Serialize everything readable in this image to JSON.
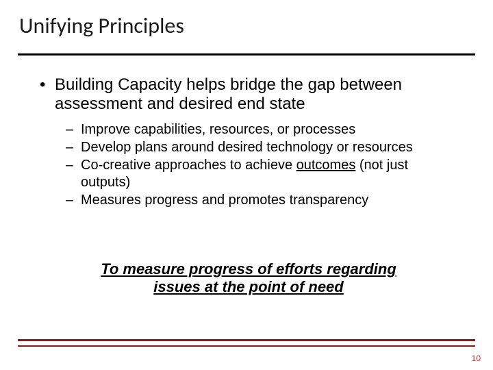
{
  "title": "Unifying Principles",
  "colors": {
    "title_rule": "#000000",
    "bottom_rule": "#8b1a1a",
    "page_num": "#9a3b3b",
    "text": "#000000",
    "background": "#ffffff"
  },
  "fonts": {
    "title_family": "Calibri",
    "body_family": "Arial",
    "title_size_pt": 32,
    "bullet_size_pt": 24,
    "sub_bullet_size_pt": 20,
    "summary_size_pt": 22
  },
  "bullet": {
    "marker": "•",
    "text": "Building Capacity helps bridge the gap between assessment and desired end state"
  },
  "sub_bullets": {
    "marker": "–",
    "items": [
      {
        "text": "Improve capabilities, resources, or processes"
      },
      {
        "text": "Develop plans around desired technology or resources"
      },
      {
        "pre": "Co-creative approaches to achieve ",
        "underlined": "outcomes",
        "post": " (not just outputs)"
      },
      {
        "text": "Measures progress and promotes transparency"
      }
    ]
  },
  "summary": {
    "line1": "To measure progress of efforts regarding",
    "line2": "issues at the point of need"
  },
  "page_number": "10"
}
